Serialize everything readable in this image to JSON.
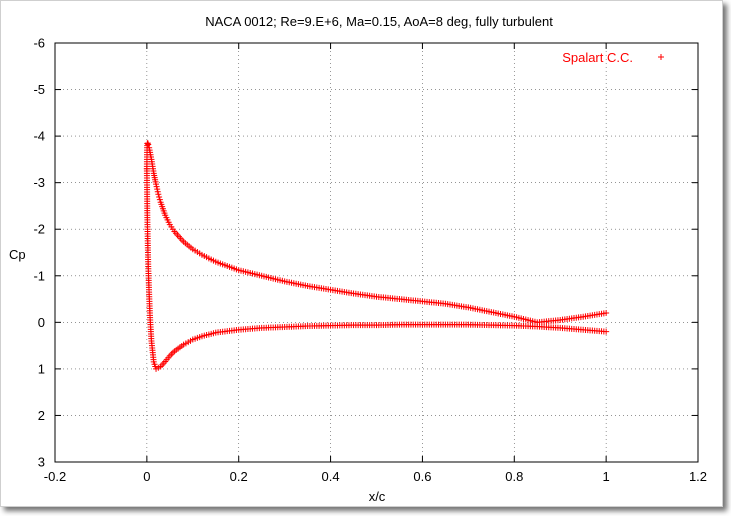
{
  "chart_data": {
    "type": "scatter",
    "title": "NACA 0012; Re=9.E+6, Ma=0.15, AoA=8 deg, fully turbulent",
    "xlabel": "x/c",
    "ylabel": "Cp",
    "xlim": [
      -0.2,
      1.2
    ],
    "ylim": [
      3,
      -6
    ],
    "y_inverted": true,
    "grid": true,
    "legend_position": "top-right",
    "x_ticks": [
      "-0.2",
      "0",
      "0.2",
      "0.4",
      "0.6",
      "0.8",
      "1",
      "1.2"
    ],
    "y_ticks": [
      "-6",
      "-5",
      "-4",
      "-3",
      "-2",
      "-1",
      "0",
      "1",
      "2",
      "3"
    ],
    "marker": "+",
    "color": "#ff0000",
    "series": [
      {
        "name": "Spalart C.C.",
        "upper_surface": {
          "x": [
            1.0,
            0.95,
            0.9,
            0.85,
            0.8,
            0.75,
            0.7,
            0.65,
            0.6,
            0.55,
            0.5,
            0.45,
            0.4,
            0.35,
            0.3,
            0.25,
            0.2,
            0.15,
            0.12,
            0.1,
            0.08,
            0.06,
            0.05,
            0.04,
            0.03,
            0.025,
            0.02,
            0.015,
            0.01,
            0.007,
            0.005,
            0.003,
            0.002,
            0.001,
            0.0005,
            0.0
          ],
          "y": [
            -0.2,
            -0.12,
            -0.05,
            0.0,
            -0.12,
            -0.22,
            -0.32,
            -0.4,
            -0.45,
            -0.5,
            -0.55,
            -0.62,
            -0.7,
            -0.78,
            -0.88,
            -1.0,
            -1.12,
            -1.3,
            -1.45,
            -1.57,
            -1.73,
            -1.95,
            -2.1,
            -2.3,
            -2.58,
            -2.75,
            -2.97,
            -3.2,
            -3.5,
            -3.65,
            -3.75,
            -3.82,
            -3.85,
            -3.84,
            -3.75,
            -3.3
          ]
        },
        "lower_surface": {
          "x": [
            0.0,
            0.0005,
            0.001,
            0.002,
            0.003,
            0.005,
            0.007,
            0.01,
            0.015,
            0.02,
            0.03,
            0.04,
            0.05,
            0.06,
            0.08,
            0.1,
            0.12,
            0.15,
            0.2,
            0.25,
            0.3,
            0.35,
            0.4,
            0.45,
            0.5,
            0.55,
            0.6,
            0.65,
            0.7,
            0.75,
            0.8,
            0.85,
            0.9,
            0.95,
            1.0
          ],
          "y": [
            -3.3,
            -2.8,
            -2.3,
            -1.7,
            -1.2,
            -0.6,
            -0.1,
            0.4,
            0.85,
            1.0,
            0.95,
            0.84,
            0.72,
            0.62,
            0.48,
            0.37,
            0.3,
            0.22,
            0.16,
            0.12,
            0.1,
            0.08,
            0.07,
            0.06,
            0.06,
            0.05,
            0.05,
            0.05,
            0.05,
            0.06,
            0.07,
            0.09,
            0.12,
            0.16,
            0.2
          ]
        }
      }
    ]
  }
}
